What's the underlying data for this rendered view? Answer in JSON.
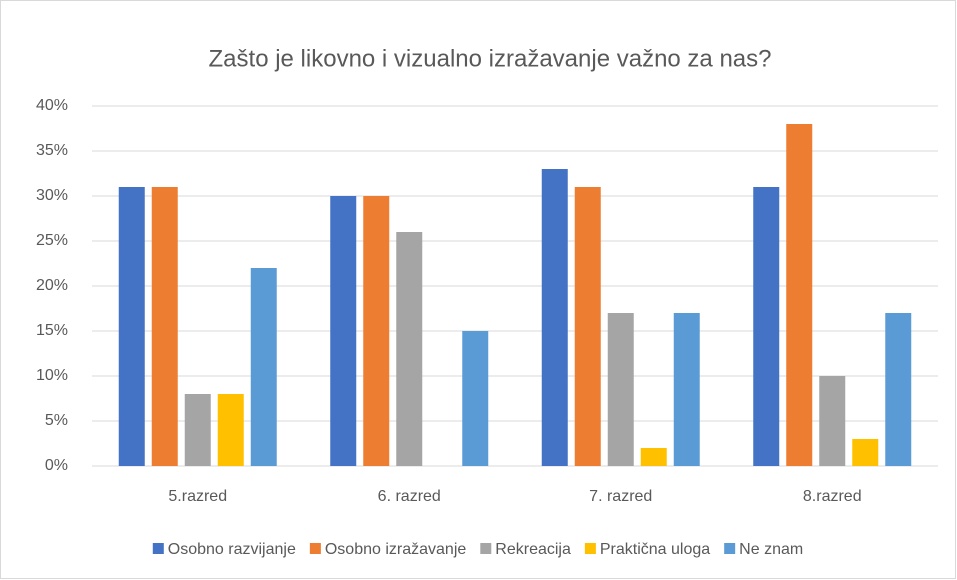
{
  "chart_data": {
    "type": "bar",
    "title": "Zašto je likovno i vizualno izražavanje važno za nas?",
    "categories": [
      "5.razred",
      "6. razred",
      "7. razred",
      "8.razred"
    ],
    "series": [
      {
        "name": "Osobno razvijanje",
        "color": "#4472c4",
        "values": [
          31,
          30,
          33,
          31
        ]
      },
      {
        "name": "Osobno izražavanje",
        "color": "#ed7d31",
        "values": [
          31,
          30,
          31,
          38
        ]
      },
      {
        "name": "Rekreacija",
        "color": "#a5a5a5",
        "values": [
          8,
          26,
          17,
          10
        ]
      },
      {
        "name": "Praktična uloga",
        "color": "#ffc000",
        "values": [
          8,
          0,
          2,
          3
        ]
      },
      {
        "name": "Ne znam",
        "color": "#5b9bd5",
        "values": [
          22,
          15,
          17,
          17
        ]
      }
    ],
    "ylim": [
      0,
      40
    ],
    "yticks": [
      {
        "value": 0,
        "label": "0%"
      },
      {
        "value": 5,
        "label": "5%"
      },
      {
        "value": 10,
        "label": "10%"
      },
      {
        "value": 15,
        "label": "15%"
      },
      {
        "value": 20,
        "label": "20%"
      },
      {
        "value": 25,
        "label": "25%"
      },
      {
        "value": 30,
        "label": "30%"
      },
      {
        "value": 35,
        "label": "35%"
      },
      {
        "value": 40,
        "label": "40%"
      }
    ],
    "grid": true,
    "legend": "bottom"
  }
}
